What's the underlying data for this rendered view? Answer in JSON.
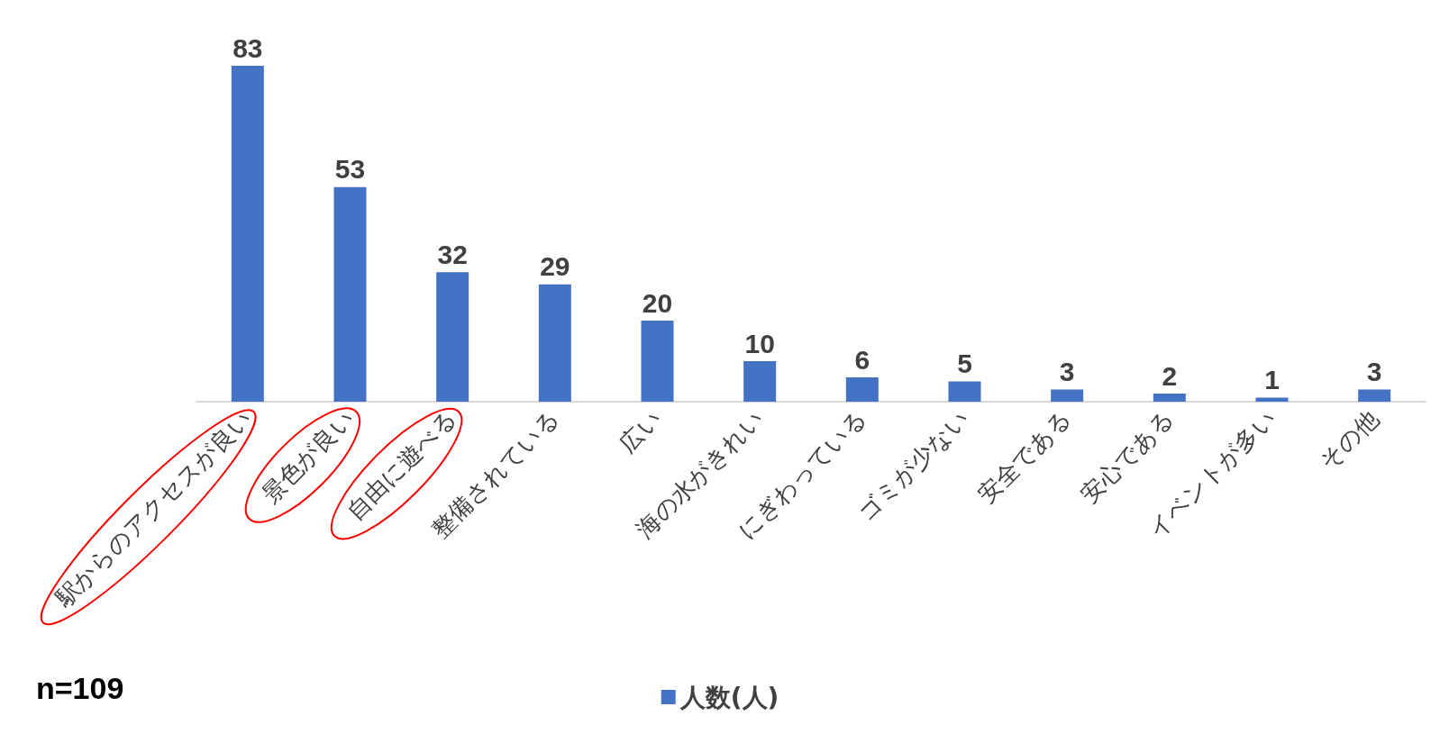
{
  "chart_data": {
    "type": "bar",
    "categories": [
      "駅からのアクセスが良い",
      "景色が良い",
      "自由に遊べる",
      "整備されている",
      "広い",
      "海の水がきれい",
      "にぎわっている",
      "ゴミが少ない",
      "安全である",
      "安心である",
      "イベントが多い",
      "その他"
    ],
    "series": [
      {
        "name": "人数(人)",
        "color": "#4472c4",
        "values": [
          83,
          53,
          32,
          29,
          20,
          10,
          6,
          5,
          3,
          2,
          1,
          3
        ]
      }
    ],
    "data_labels": true,
    "legend": "bottom",
    "annotations": [
      "n=109"
    ]
  }
}
